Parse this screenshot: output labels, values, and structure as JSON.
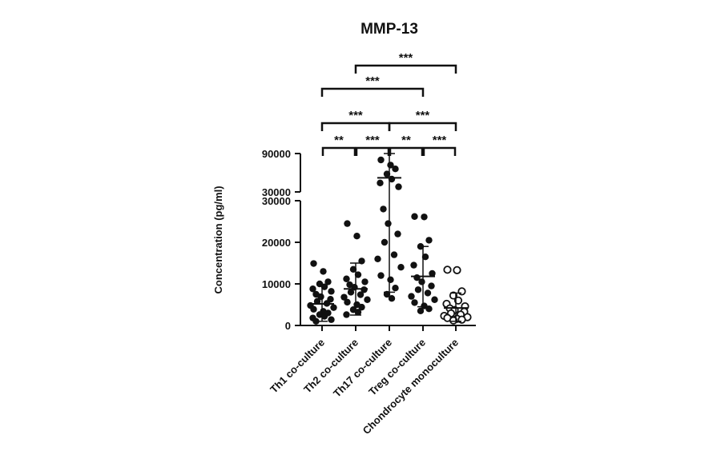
{
  "chart_data": {
    "type": "scatter",
    "title": "MMP-13",
    "ylabel": "Concentration (pg/ml)",
    "xlabel": "",
    "y_axis_break": {
      "lower_range": [
        0,
        30000
      ],
      "upper_range": [
        30000,
        90000
      ],
      "lower_tick_labels": [
        "0",
        "10000",
        "20000",
        "30000"
      ],
      "upper_tick_labels": [
        "30000",
        "90000"
      ]
    },
    "categories": [
      "Th1 co-culture",
      "Th2 co-culture",
      "Th17 co-culture",
      "Treg co-culture",
      "Chondrocyte monoculture"
    ],
    "groups": [
      {
        "name": "Th1 co-culture",
        "marker": "filled",
        "mean": 5200,
        "sd_low": 1000,
        "sd_high": 9800,
        "values": [
          14900,
          13000,
          10500,
          10000,
          9300,
          8800,
          8200,
          7500,
          6900,
          6300,
          5800,
          5300,
          4800,
          4300,
          3900,
          3400,
          3000,
          2600,
          2200,
          1800,
          1400,
          1000
        ]
      },
      {
        "name": "Th2 co-culture",
        "marker": "filled",
        "mean": 8800,
        "sd_low": 2500,
        "sd_high": 15000,
        "values": [
          24500,
          21500,
          15500,
          13500,
          12200,
          11200,
          10500,
          9800,
          9200,
          8600,
          8000,
          7400,
          6800,
          6200,
          5600,
          5000,
          4400,
          3800,
          3200,
          2600
        ]
      },
      {
        "name": "Th17 co-culture",
        "marker": "filled",
        "mean": 52000,
        "sd_low": 8000,
        "sd_high": 90000,
        "values": [
          80000,
          72000,
          66000,
          58000,
          50000,
          44000,
          38000,
          28000,
          24500,
          22000,
          20000,
          17000,
          16000,
          14000,
          12000,
          11000,
          9000,
          7500,
          6500
        ]
      },
      {
        "name": "Treg co-culture",
        "marker": "filled",
        "mean": 11800,
        "sd_low": 4500,
        "sd_high": 19000,
        "values": [
          26200,
          26100,
          20500,
          19000,
          16500,
          14500,
          12500,
          11500,
          10500,
          9500,
          8600,
          7800,
          7000,
          6200,
          5500,
          4700,
          4000,
          3500
        ]
      },
      {
        "name": "Chondrocyte monoculture",
        "marker": "open",
        "mean": 4200,
        "sd_low": 1000,
        "sd_high": 7800,
        "values": [
          13400,
          13300,
          8200,
          7200,
          6000,
          5200,
          4600,
          4100,
          3700,
          3300,
          2900,
          2600,
          2300,
          2000,
          1800,
          1600,
          1400,
          1200
        ]
      }
    ],
    "comparisons": [
      {
        "groups": [
          "Th1 co-culture",
          "Th2 co-culture"
        ],
        "label": "**"
      },
      {
        "groups": [
          "Th2 co-culture",
          "Th17 co-culture"
        ],
        "label": "***"
      },
      {
        "groups": [
          "Th17 co-culture",
          "Treg co-culture"
        ],
        "label": "**"
      },
      {
        "groups": [
          "Treg co-culture",
          "Chondrocyte monoculture"
        ],
        "label": "***"
      },
      {
        "groups": [
          "Th1 co-culture",
          "Th17 co-culture"
        ],
        "label": "***"
      },
      {
        "groups": [
          "Th17 co-culture",
          "Chondrocyte monoculture"
        ],
        "label": "***"
      },
      {
        "groups": [
          "Th1 co-culture",
          "Treg co-culture"
        ],
        "label": "***"
      },
      {
        "groups": [
          "Th2 co-culture",
          "Chondrocyte monoculture"
        ],
        "label": "***"
      }
    ],
    "grid": false,
    "legend": "none"
  }
}
